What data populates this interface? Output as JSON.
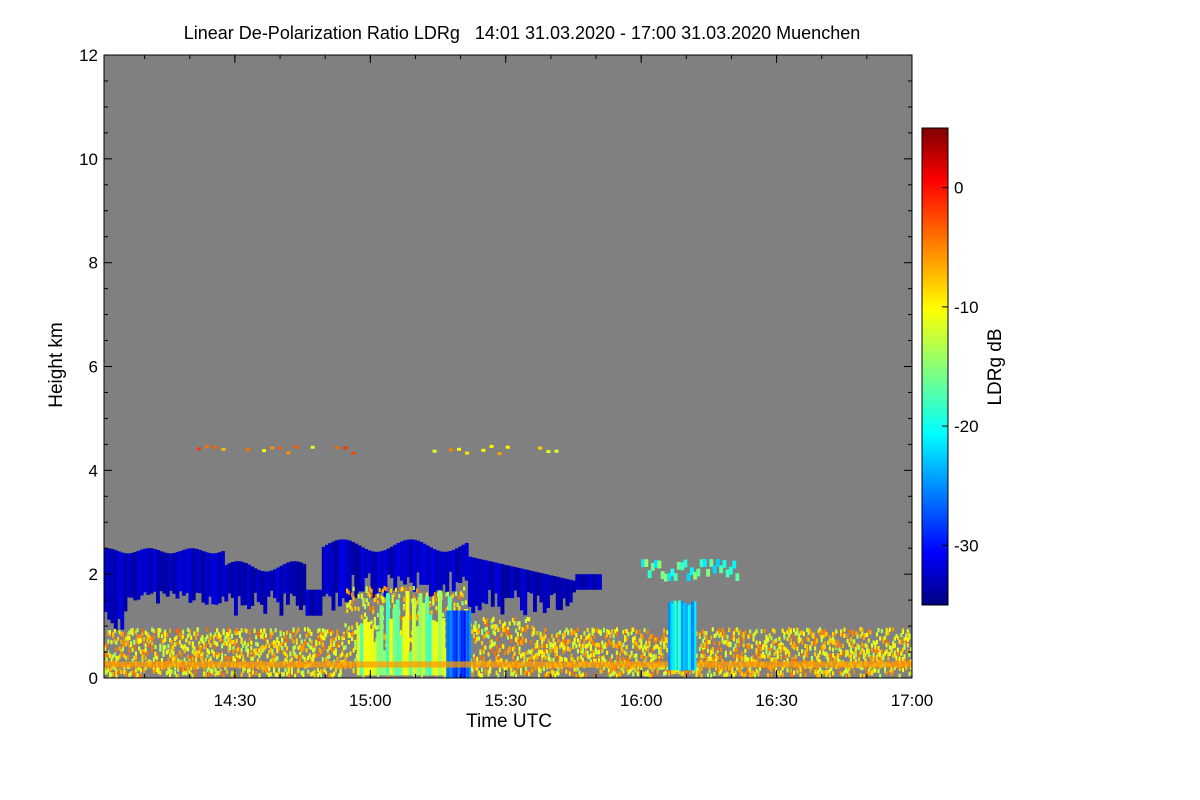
{
  "chart_data": {
    "type": "heatmap",
    "title": "Linear De-Polarization Ratio LDRg   14:01 31.03.2020 - 17:00 31.03.2020 Muenchen",
    "xlabel": "Time UTC",
    "ylabel": "Height km",
    "x_range_hours": [
      14.0167,
      17.0
    ],
    "ylim": [
      0,
      12
    ],
    "x_ticks": [
      {
        "label": "14:30",
        "value": 14.5
      },
      {
        "label": "15:00",
        "value": 15.0
      },
      {
        "label": "15:30",
        "value": 15.5
      },
      {
        "label": "16:00",
        "value": 16.0
      },
      {
        "label": "16:30",
        "value": 16.5
      },
      {
        "label": "17:00",
        "value": 17.0
      }
    ],
    "y_ticks": [
      {
        "label": "0",
        "value": 0
      },
      {
        "label": "2",
        "value": 2
      },
      {
        "label": "4",
        "value": 4
      },
      {
        "label": "6",
        "value": 6
      },
      {
        "label": "8",
        "value": 8
      },
      {
        "label": "10",
        "value": 10
      },
      {
        "label": "12",
        "value": 12
      }
    ],
    "colorbar": {
      "label": "LDRg dB",
      "range": [
        -35,
        5
      ],
      "ticks": [
        {
          "label": "0",
          "value": 0
        },
        {
          "label": "-10",
          "value": -10
        },
        {
          "label": "-20",
          "value": -20
        },
        {
          "label": "-30",
          "value": -30
        }
      ]
    },
    "background_color": "#808080",
    "features": [
      {
        "name": "low-depolarization cloud layer (blue, about -32 dB)",
        "time_start": 14.0167,
        "time_end": 15.9,
        "height_bottom_km": 0.9,
        "height_top_km": 2.7,
        "ldr_db": -32
      },
      {
        "name": "high-depolarization precipitation / aerosol near ground (yellow-orange, about -12 to -5 dB)",
        "time_start": 14.0167,
        "time_end": 17.0,
        "height_bottom_km": 0.0,
        "height_top_km": 1.0,
        "ldr_db": -10
      },
      {
        "name": "fall streaks below cloud (green-yellow, about -15 dB)",
        "time_start": 14.9,
        "time_end": 15.35,
        "height_bottom_km": 0.0,
        "height_top_km": 1.7,
        "ldr_db": -15
      },
      {
        "name": "isolated cloud (blue-cyan)",
        "time_start": 16.1,
        "time_end": 16.18,
        "height_bottom_km": 0.2,
        "height_top_km": 1.5,
        "ldr_db": -25
      },
      {
        "name": "thin cloud layer (cyan)",
        "time_start": 16.0,
        "time_end": 16.35,
        "height_bottom_km": 1.4,
        "height_top_km": 2.3,
        "ldr_db": -22
      },
      {
        "name": "sparse signal near 4.4 km",
        "time_start": 14.3,
        "time_end": 15.7,
        "height_bottom_km": 4.3,
        "height_top_km": 4.6,
        "ldr_db": -8
      }
    ]
  }
}
